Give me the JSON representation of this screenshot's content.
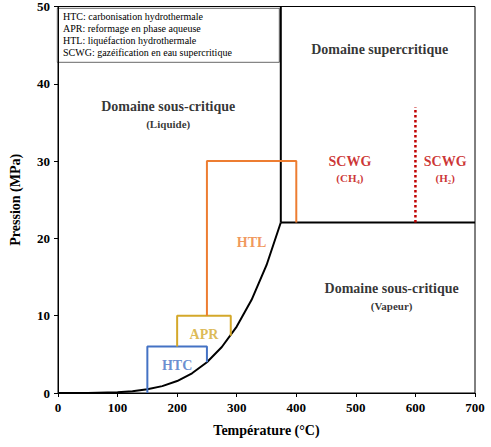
{
  "chart_data": {
    "type": "line",
    "x_label": "Température (°C)",
    "y_label": "Pression (MPa)",
    "xlim": [
      0,
      700
    ],
    "xticks": [
      0,
      100,
      200,
      300,
      400,
      500,
      600,
      700
    ],
    "ylim": [
      0,
      50
    ],
    "yticks": [
      0,
      10,
      20,
      30,
      40,
      50
    ],
    "grid": false,
    "series": [
      {
        "color": "#000000",
        "line_style": "solid",
        "x": [
          0,
          50,
          100,
          125,
          150,
          175,
          200,
          225,
          250,
          275,
          300,
          325,
          350,
          374
        ],
        "values": [
          0,
          0.012,
          0.101,
          0.232,
          0.476,
          0.892,
          1.55,
          2.55,
          3.98,
          5.95,
          8.59,
          12.05,
          16.53,
          22.06
        ]
      },
      {
        "color": "#000000",
        "line_style": "solid",
        "x": [
          374,
          700
        ],
        "values": [
          22.06,
          22.06
        ]
      },
      {
        "color": "#000000",
        "line_style": "solid",
        "x": [
          374,
          374
        ],
        "values": [
          22.06,
          50
        ]
      },
      {
        "color": "#4472c4",
        "line_style": "solid",
        "x": [
          150,
          150,
          250,
          250
        ],
        "values": [
          0,
          6,
          6,
          3.98
        ]
      },
      {
        "color": "#d4a82a",
        "line_style": "solid",
        "x": [
          200,
          200,
          290,
          290
        ],
        "values": [
          6,
          10,
          10,
          7.4
        ]
      },
      {
        "color": "#ed7d31",
        "line_style": "solid",
        "x": [
          250,
          250,
          400,
          400
        ],
        "values": [
          10,
          30,
          30,
          22.06
        ]
      },
      {
        "color": "#c00000",
        "line_style": "dotted",
        "x": [
          600,
          600
        ],
        "values": [
          22.06,
          37
        ]
      }
    ],
    "annotations": [
      {
        "text": "Domaine supercritique",
        "x": 540,
        "y": 44.5,
        "color": "#000000"
      },
      {
        "text": "Domaine sous-critique",
        "x": 185,
        "y": 37,
        "color": "#000000"
      },
      {
        "text": "(Liquide)",
        "x": 185,
        "y": 34.8,
        "color": "#000000"
      },
      {
        "text": "Domaine sous-critique",
        "x": 560,
        "y": 13.5,
        "color": "#000000"
      },
      {
        "text": "(Vapeur)",
        "x": 560,
        "y": 11.3,
        "color": "#000000"
      },
      {
        "text": "SCWG",
        "x": 490,
        "y": 30,
        "color": "#c00000"
      },
      {
        "text": "(CH₄)",
        "x": 490,
        "y": 27.8,
        "color": "#c00000"
      },
      {
        "text": "SCWG",
        "x": 650,
        "y": 30,
        "color": "#c00000"
      },
      {
        "text": "(H₂)",
        "x": 650,
        "y": 27.8,
        "color": "#c00000"
      },
      {
        "text": "HTL",
        "x": 325,
        "y": 19.5,
        "color": "#ed7d31"
      },
      {
        "text": "APR",
        "x": 245,
        "y": 7.6,
        "color": "#d4a82a"
      },
      {
        "text": "HTC",
        "x": 200,
        "y": 3.6,
        "color": "#4472c4"
      }
    ],
    "glossary": [
      "HTC: carbonisation hydrothermale",
      "APR: reformage en phase aqueuse",
      "HTL: liquéfaction hydrothermale",
      "SCWG: gazéification en eau supercritique"
    ]
  }
}
